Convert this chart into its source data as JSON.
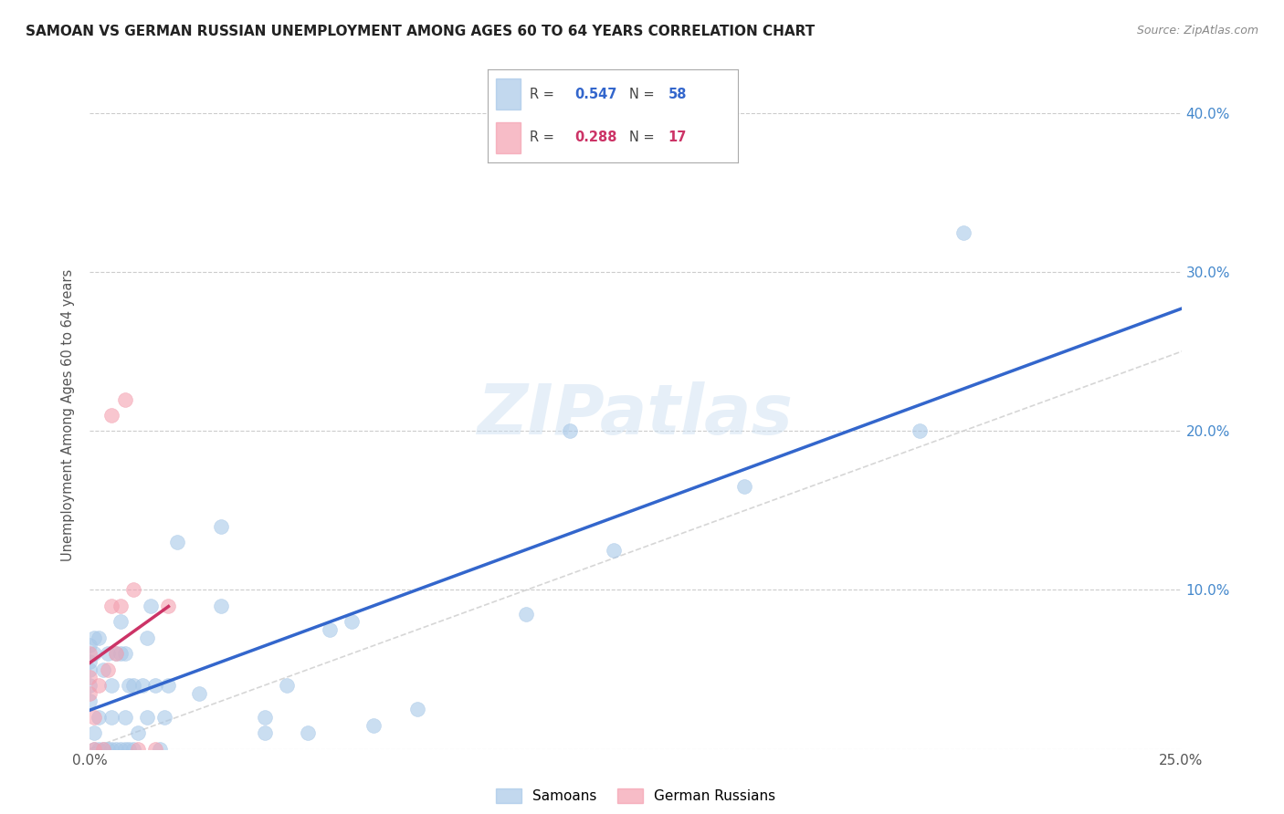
{
  "title": "SAMOAN VS GERMAN RUSSIAN UNEMPLOYMENT AMONG AGES 60 TO 64 YEARS CORRELATION CHART",
  "source": "Source: ZipAtlas.com",
  "ylabel": "Unemployment Among Ages 60 to 64 years",
  "xlim": [
    0.0,
    0.25
  ],
  "ylim": [
    0.0,
    0.42
  ],
  "xticks": [
    0.0,
    0.05,
    0.1,
    0.15,
    0.2,
    0.25
  ],
  "xticklabels": [
    "0.0%",
    "",
    "",
    "",
    "",
    "25.0%"
  ],
  "yticks": [
    0.0,
    0.1,
    0.2,
    0.3,
    0.4
  ],
  "yticklabels_right": [
    "",
    "10.0%",
    "20.0%",
    "30.0%",
    "40.0%"
  ],
  "samoans_R": 0.547,
  "samoans_N": 58,
  "german_russians_R": 0.288,
  "german_russians_N": 17,
  "samoans_color": "#a8c8e8",
  "german_russians_color": "#f4a0b0",
  "samoans_line_color": "#3366cc",
  "german_russians_line_color": "#cc3366",
  "diagonal_color": "#cccccc",
  "background_color": "#ffffff",
  "grid_color": "#cccccc",
  "watermark": "ZIPatlas",
  "tick_color": "#4488cc",
  "samoans_x": [
    0.0,
    0.0,
    0.0,
    0.0,
    0.0,
    0.001,
    0.001,
    0.001,
    0.001,
    0.002,
    0.002,
    0.002,
    0.003,
    0.003,
    0.004,
    0.004,
    0.005,
    0.005,
    0.005,
    0.006,
    0.006,
    0.007,
    0.007,
    0.007,
    0.008,
    0.008,
    0.008,
    0.009,
    0.009,
    0.01,
    0.01,
    0.011,
    0.012,
    0.013,
    0.013,
    0.014,
    0.015,
    0.016,
    0.017,
    0.018,
    0.02,
    0.025,
    0.03,
    0.03,
    0.04,
    0.04,
    0.045,
    0.05,
    0.055,
    0.06,
    0.065,
    0.075,
    0.1,
    0.11,
    0.12,
    0.15,
    0.19,
    0.2
  ],
  "samoans_y": [
    0.03,
    0.04,
    0.05,
    0.055,
    0.065,
    0.0,
    0.01,
    0.06,
    0.07,
    0.0,
    0.02,
    0.07,
    0.0,
    0.05,
    0.0,
    0.06,
    0.0,
    0.02,
    0.04,
    0.0,
    0.06,
    0.0,
    0.06,
    0.08,
    0.0,
    0.02,
    0.06,
    0.0,
    0.04,
    0.0,
    0.04,
    0.01,
    0.04,
    0.02,
    0.07,
    0.09,
    0.04,
    0.0,
    0.02,
    0.04,
    0.13,
    0.035,
    0.09,
    0.14,
    0.01,
    0.02,
    0.04,
    0.01,
    0.075,
    0.08,
    0.015,
    0.025,
    0.085,
    0.2,
    0.125,
    0.165,
    0.2,
    0.325
  ],
  "german_russians_x": [
    0.0,
    0.0,
    0.0,
    0.001,
    0.001,
    0.002,
    0.003,
    0.004,
    0.005,
    0.005,
    0.006,
    0.007,
    0.008,
    0.01,
    0.011,
    0.015,
    0.018
  ],
  "german_russians_y": [
    0.035,
    0.045,
    0.06,
    0.0,
    0.02,
    0.04,
    0.0,
    0.05,
    0.09,
    0.21,
    0.06,
    0.09,
    0.22,
    0.1,
    0.0,
    0.0,
    0.09
  ]
}
